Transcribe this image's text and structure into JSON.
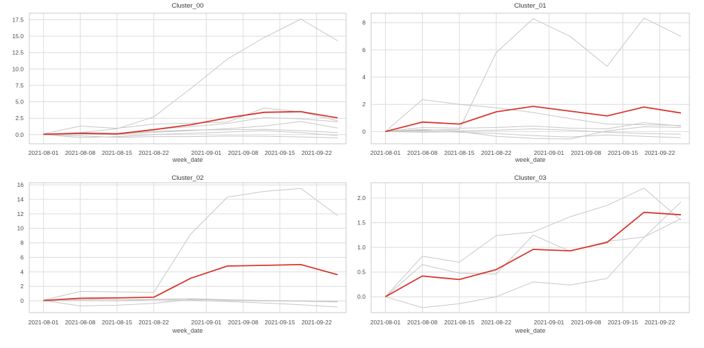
{
  "figure": {
    "accent_color": "#d9352b",
    "member_color": "#c6c6c6",
    "grid_color": "#dcdcdc",
    "spine_color": "#c8c8c8",
    "background": "#ffffff",
    "xlabel": "week_date"
  },
  "chart_data": [
    {
      "type": "line",
      "title": "Cluster_00",
      "xlabel": "week_date",
      "grid": true,
      "legend": null,
      "x": [
        "2021-08-01",
        "2021-08-08",
        "2021-08-15",
        "2021-08-22",
        "2021-08-29",
        "2021-09-05",
        "2021-09-12",
        "2021-09-19",
        "2021-09-26"
      ],
      "x_ticks": [
        "2021-08-01",
        "2021-08-08",
        "2021-08-15",
        "2021-08-22",
        "2021-09-01",
        "2021-09-08",
        "2021-09-15",
        "2021-09-22"
      ],
      "xlim_days": [
        -2.7,
        57.6
      ],
      "y_ticks": [
        0,
        2.5,
        5,
        7.5,
        10,
        12.5,
        15,
        17.5
      ],
      "y_tick_labels": [
        "0.0",
        "2.5",
        "5.0",
        "7.5",
        "10.0",
        "12.5",
        "15.0",
        "17.5"
      ],
      "ylim": [
        -1.4,
        18.5
      ],
      "series": [
        {
          "name": "member_1",
          "color": "#c6c6c6",
          "values": [
            0.0,
            0.3,
            0.9,
            2.7,
            7.0,
            11.5,
            14.8,
            17.6,
            14.3
          ]
        },
        {
          "name": "member_2",
          "color": "#c6c6c6",
          "values": [
            0.1,
            1.3,
            0.95,
            1.6,
            1.75,
            1.9,
            4.05,
            3.45,
            2.1
          ]
        },
        {
          "name": "member_3",
          "color": "#c6c6c6",
          "values": [
            0.0,
            0.25,
            0.15,
            0.8,
            1.2,
            1.7,
            2.6,
            2.4,
            1.95
          ]
        },
        {
          "name": "member_4",
          "color": "#c6c6c6",
          "values": [
            0.0,
            0.1,
            0.05,
            0.35,
            0.6,
            0.9,
            1.3,
            2.0,
            1.0
          ]
        },
        {
          "name": "member_5",
          "color": "#c6c6c6",
          "values": [
            0.05,
            0.3,
            0.2,
            0.5,
            0.7,
            0.75,
            0.8,
            0.6,
            0.3
          ]
        },
        {
          "name": "member_6",
          "color": "#c6c6c6",
          "values": [
            0.0,
            -0.45,
            -0.3,
            0.0,
            0.2,
            0.4,
            0.6,
            0.3,
            -0.15
          ]
        },
        {
          "name": "member_7",
          "color": "#c6c6c6",
          "values": [
            0.0,
            -0.2,
            -0.4,
            -0.3,
            -0.3,
            -0.2,
            -0.25,
            -0.35,
            -0.5
          ]
        },
        {
          "name": "cluster_mean",
          "role": "highlight",
          "color": "#d9352b",
          "values": [
            0.05,
            0.2,
            0.1,
            0.75,
            1.5,
            2.55,
            3.4,
            3.5,
            2.55
          ]
        }
      ]
    },
    {
      "type": "line",
      "title": "Cluster_01",
      "xlabel": "week_date",
      "grid": true,
      "legend": null,
      "x": [
        "2021-08-01",
        "2021-08-08",
        "2021-08-15",
        "2021-08-22",
        "2021-08-29",
        "2021-09-05",
        "2021-09-12",
        "2021-09-19",
        "2021-09-26"
      ],
      "x_ticks": [
        "2021-08-01",
        "2021-08-08",
        "2021-08-15",
        "2021-08-22",
        "2021-09-01",
        "2021-09-08",
        "2021-09-15",
        "2021-09-22"
      ],
      "xlim_days": [
        -2.7,
        57.6
      ],
      "y_ticks": [
        0,
        2,
        4,
        6,
        8
      ],
      "y_tick_labels": [
        "0",
        "2",
        "4",
        "6",
        "8"
      ],
      "ylim": [
        -0.9,
        8.7
      ],
      "series": [
        {
          "name": "member_1",
          "color": "#c6c6c6",
          "values": [
            0.0,
            0.1,
            0.15,
            5.8,
            8.3,
            7.0,
            4.8,
            8.35,
            7.0
          ]
        },
        {
          "name": "member_2",
          "color": "#c6c6c6",
          "values": [
            0.0,
            2.35,
            2.0,
            1.75,
            1.4,
            0.95,
            0.55,
            0.5,
            0.45
          ]
        },
        {
          "name": "member_3",
          "color": "#c6c6c6",
          "values": [
            0.0,
            0.3,
            0.25,
            0.3,
            0.4,
            0.25,
            0.2,
            0.65,
            0.4
          ]
        },
        {
          "name": "member_4",
          "color": "#c6c6c6",
          "values": [
            0.0,
            0.15,
            0.05,
            0.1,
            0.2,
            0.1,
            -0.05,
            -0.15,
            -0.2
          ]
        },
        {
          "name": "member_5",
          "color": "#c6c6c6",
          "values": [
            0.0,
            -0.05,
            0.0,
            -0.35,
            -0.5,
            -0.55,
            0.05,
            0.35,
            0.3
          ]
        },
        {
          "name": "member_6",
          "color": "#c6c6c6",
          "values": [
            0.0,
            0.05,
            -0.05,
            -0.15,
            -0.3,
            -0.4,
            -0.25,
            -0.35,
            -0.45
          ]
        },
        {
          "name": "cluster_mean",
          "role": "highlight",
          "color": "#d9352b",
          "values": [
            0.0,
            0.7,
            0.55,
            1.45,
            1.85,
            1.5,
            1.15,
            1.8,
            1.36
          ]
        }
      ]
    },
    {
      "type": "line",
      "title": "Cluster_02",
      "xlabel": "week_date",
      "grid": true,
      "legend": null,
      "x": [
        "2021-08-01",
        "2021-08-08",
        "2021-08-15",
        "2021-08-22",
        "2021-08-29",
        "2021-09-05",
        "2021-09-12",
        "2021-09-19",
        "2021-09-26"
      ],
      "x_ticks": [
        "2021-08-01",
        "2021-08-08",
        "2021-08-15",
        "2021-08-22",
        "2021-09-01",
        "2021-09-08",
        "2021-09-15",
        "2021-09-22"
      ],
      "xlim_days": [
        -2.7,
        57.6
      ],
      "y_ticks": [
        0,
        2,
        4,
        6,
        8,
        10,
        12,
        14,
        16
      ],
      "y_tick_labels": [
        "0",
        "2",
        "4",
        "6",
        "8",
        "10",
        "12",
        "14",
        "16"
      ],
      "ylim": [
        -1.62,
        16.3
      ],
      "series": [
        {
          "name": "member_1",
          "color": "#c6c6c6",
          "values": [
            0.1,
            1.3,
            1.25,
            1.15,
            9.2,
            14.3,
            15.1,
            15.5,
            11.75
          ]
        },
        {
          "name": "member_2",
          "color": "#c6c6c6",
          "values": [
            0.05,
            -0.7,
            -0.6,
            -0.35,
            0.2,
            0.1,
            0.0,
            -0.05,
            -0.15
          ]
        },
        {
          "name": "member_3",
          "color": "#c6c6c6",
          "values": [
            0.1,
            0.2,
            0.15,
            0.2,
            0.3,
            0.15,
            0.05,
            0.0,
            -0.1
          ]
        },
        {
          "name": "member_4",
          "color": "#c6c6c6",
          "values": [
            0.0,
            0.05,
            0.0,
            0.15,
            0.1,
            -0.1,
            -0.3,
            -0.55,
            -0.85
          ]
        },
        {
          "name": "cluster_mean",
          "role": "highlight",
          "color": "#d9352b",
          "values": [
            0.05,
            0.35,
            0.4,
            0.5,
            3.1,
            4.8,
            4.9,
            5.0,
            3.6
          ]
        }
      ]
    },
    {
      "type": "line",
      "title": "Cluster_03",
      "xlabel": "week_date",
      "grid": true,
      "legend": null,
      "x": [
        "2021-08-01",
        "2021-08-08",
        "2021-08-15",
        "2021-08-22",
        "2021-08-29",
        "2021-09-05",
        "2021-09-12",
        "2021-09-19",
        "2021-09-26"
      ],
      "x_ticks": [
        "2021-08-01",
        "2021-08-08",
        "2021-08-15",
        "2021-08-22",
        "2021-09-01",
        "2021-09-08",
        "2021-09-15",
        "2021-09-22"
      ],
      "xlim_days": [
        -2.7,
        57.6
      ],
      "y_ticks": [
        0,
        0.5,
        1,
        1.5,
        2
      ],
      "y_tick_labels": [
        "0.0",
        "0.5",
        "1.0",
        "1.5",
        "2.0"
      ],
      "ylim": [
        -0.32,
        2.31
      ],
      "series": [
        {
          "name": "member_1",
          "color": "#c6c6c6",
          "values": [
            0.0,
            0.82,
            0.7,
            1.24,
            1.31,
            1.62,
            1.85,
            2.2,
            1.55
          ]
        },
        {
          "name": "member_2",
          "color": "#c6c6c6",
          "values": [
            0.0,
            0.65,
            0.48,
            0.46,
            1.25,
            0.92,
            1.12,
            1.21,
            1.58
          ]
        },
        {
          "name": "member_3",
          "color": "#c6c6c6",
          "values": [
            0.0,
            -0.22,
            -0.14,
            0.0,
            0.3,
            0.24,
            0.37,
            1.2,
            1.92
          ]
        },
        {
          "name": "cluster_mean",
          "role": "highlight",
          "color": "#d9352b",
          "values": [
            0.0,
            0.42,
            0.35,
            0.55,
            0.96,
            0.93,
            1.1,
            1.71,
            1.66
          ]
        }
      ]
    }
  ]
}
